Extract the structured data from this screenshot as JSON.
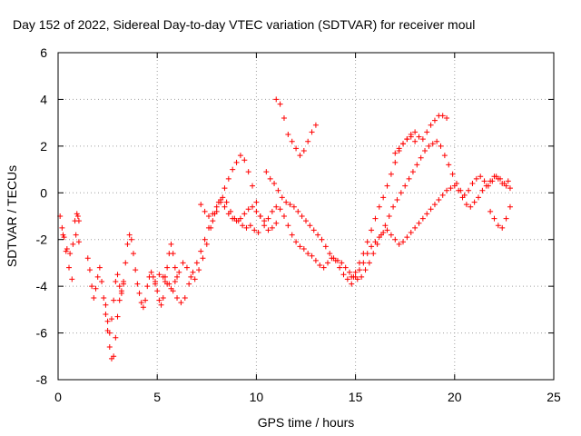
{
  "chart_data": {
    "type": "scatter",
    "title": "Day 152 of 2022, Sidereal Day-to-day VTEC variation (SDTVAR) for receiver moul",
    "xlabel": "GPS time / hours",
    "ylabel": "SDTVAR / TECUs",
    "xlim": [
      0,
      25
    ],
    "ylim": [
      -8,
      6
    ],
    "x_ticks": [
      0,
      5,
      10,
      15,
      20,
      25
    ],
    "y_ticks": [
      -8,
      -6,
      -4,
      -2,
      0,
      2,
      4,
      6
    ],
    "grid": true,
    "marker": "+",
    "series": [
      {
        "name": "SDTVAR",
        "color": "#ff0000",
        "x": [
          0.1,
          0.25,
          0.4,
          0.55,
          0.7,
          0.85,
          0.95,
          1.0,
          1.05,
          0.2,
          0.3,
          0.45,
          0.6,
          0.75,
          0.9,
          1.05,
          1.5,
          1.6,
          1.7,
          1.8,
          1.9,
          2.0,
          2.1,
          2.2,
          2.3,
          2.4,
          2.5,
          2.6,
          2.7,
          2.8,
          2.9,
          3.0,
          3.1,
          3.2,
          3.3,
          2.4,
          2.5,
          2.6,
          2.7,
          2.8,
          2.9,
          3.0,
          3.1,
          3.2,
          3.3,
          3.4,
          3.5,
          3.6,
          3.7,
          3.8,
          3.9,
          4.0,
          4.1,
          4.2,
          4.3,
          4.4,
          4.5,
          4.6,
          4.7,
          4.8,
          4.9,
          5.0,
          5.1,
          5.2,
          5.3,
          5.4,
          5.5,
          5.6,
          5.7,
          5.8,
          5.9,
          6.0,
          4.9,
          5.1,
          5.3,
          5.5,
          5.7,
          5.9,
          6.1,
          6.3,
          6.5,
          6.7,
          6.9,
          7.1,
          7.3,
          7.5,
          7.7,
          7.9,
          8.1,
          8.3,
          8.5,
          8.7,
          8.9,
          9.1,
          9.3,
          9.5,
          9.7,
          9.9,
          10.1,
          5.4,
          5.6,
          5.8,
          6.0,
          6.2,
          6.4,
          6.6,
          6.8,
          7.0,
          7.2,
          7.4,
          7.6,
          7.8,
          8.0,
          8.2,
          8.4,
          8.6,
          8.8,
          9.0,
          9.2,
          9.4,
          9.6,
          9.8,
          10.0,
          10.2,
          10.4,
          10.6,
          10.8,
          11.0,
          7.2,
          7.4,
          7.6,
          7.8,
          8.0,
          8.2,
          8.4,
          8.6,
          8.8,
          9.0,
          9.2,
          9.4,
          9.6,
          9.8,
          10.0,
          10.2,
          10.4,
          10.6,
          10.8,
          11.0,
          11.2,
          11.4,
          11.6,
          11.8,
          12.0,
          12.2,
          12.4,
          12.6,
          12.8,
          13.0,
          13.2,
          13.4,
          13.6,
          13.8,
          14.0,
          14.2,
          14.4,
          14.6,
          14.8,
          15.0,
          15.2,
          15.4,
          15.6,
          15.8,
          16.0,
          16.2,
          16.4,
          16.6,
          16.8,
          17.0,
          17.2,
          17.4,
          17.6,
          17.8,
          18.0,
          10.5,
          10.7,
          10.9,
          11.1,
          11.3,
          11.5,
          11.7,
          11.9,
          12.1,
          12.3,
          12.5,
          12.7,
          12.9,
          13.1,
          13.3,
          13.5,
          13.7,
          13.9,
          14.1,
          14.3,
          14.5,
          14.7,
          14.9,
          15.1,
          15.3,
          15.5,
          15.7,
          15.9,
          16.1,
          16.3,
          16.5,
          16.7,
          16.9,
          17.1,
          17.3,
          17.5,
          17.7,
          17.9,
          18.1,
          18.3,
          18.5,
          18.7,
          18.9,
          19.1,
          19.3,
          19.5,
          19.7,
          19.9,
          20.1,
          20.3,
          20.5,
          20.7,
          20.9,
          21.1,
          21.3,
          21.5,
          21.7,
          21.9,
          22.1,
          22.3,
          22.5,
          22.7,
          11.0,
          11.2,
          11.4,
          11.6,
          11.8,
          12.0,
          12.2,
          12.4,
          12.6,
          12.8,
          13.0,
          14.8,
          15.0,
          15.2,
          15.4,
          15.6,
          15.8,
          16.0,
          16.2,
          16.4,
          16.6,
          16.8,
          17.0,
          17.2,
          17.4,
          17.6,
          17.8,
          18.0,
          18.2,
          18.4,
          18.6,
          18.8,
          19.0,
          19.2,
          19.4,
          19.6,
          19.8,
          20.0,
          20.2,
          20.4,
          20.6,
          20.8,
          21.0,
          21.2,
          21.4,
          21.6,
          21.8,
          22.0,
          22.2,
          22.4,
          22.6,
          22.8,
          17.0,
          17.2,
          17.4,
          17.6,
          17.8,
          18.0,
          18.2,
          18.4,
          18.6,
          18.8,
          19.0,
          19.2,
          19.4,
          19.6,
          21.8,
          22.0,
          22.2,
          22.4,
          22.6,
          22.8
        ],
        "y": [
          -1.0,
          -1.8,
          -2.5,
          -3.2,
          -3.7,
          -1.2,
          -0.9,
          -1.0,
          -1.2,
          -1.5,
          -1.9,
          -2.4,
          -2.6,
          -2.2,
          -1.8,
          -2.1,
          -2.8,
          -3.3,
          -4.0,
          -4.5,
          -4.1,
          -3.6,
          -3.2,
          -3.8,
          -4.5,
          -5.2,
          -5.9,
          -6.6,
          -7.1,
          -7.0,
          -6.2,
          -5.3,
          -4.6,
          -4.2,
          -3.9,
          -4.8,
          -5.5,
          -6.0,
          -5.4,
          -4.6,
          -3.8,
          -3.5,
          -4.0,
          -4.3,
          -3.8,
          -3.0,
          -2.2,
          -1.8,
          -2.0,
          -2.6,
          -3.3,
          -3.9,
          -4.3,
          -4.7,
          -4.9,
          -4.6,
          -4.0,
          -3.6,
          -3.4,
          -3.6,
          -3.9,
          -4.2,
          -4.6,
          -4.8,
          -4.5,
          -3.8,
          -3.2,
          -2.6,
          -2.2,
          -2.6,
          -3.2,
          -3.6,
          -3.8,
          -3.5,
          -3.6,
          -3.9,
          -4.1,
          -3.8,
          -3.4,
          -3.0,
          -3.2,
          -3.6,
          -3.7,
          -3.3,
          -2.8,
          -2.2,
          -1.5,
          -0.9,
          -0.4,
          -0.2,
          -0.4,
          -0.8,
          -1.1,
          -1.2,
          -1.4,
          -1.5,
          -1.4,
          -1.6,
          -1.7,
          -3.6,
          -3.9,
          -4.2,
          -4.5,
          -4.7,
          -4.5,
          -3.9,
          -3.4,
          -3.0,
          -2.5,
          -2.0,
          -1.5,
          -1.2,
          -0.8,
          -0.3,
          0.2,
          0.6,
          1.0,
          1.3,
          1.6,
          1.4,
          0.9,
          0.3,
          -0.4,
          -1.0,
          -1.4,
          -1.6,
          -1.5,
          -1.3,
          -0.5,
          -0.8,
          -1.0,
          -0.9,
          -0.6,
          -0.4,
          -0.6,
          -0.9,
          -1.1,
          -1.2,
          -1.1,
          -0.9,
          -0.7,
          -0.6,
          -0.8,
          -1.0,
          -1.2,
          -1.1,
          -0.8,
          -0.6,
          -0.7,
          -1.0,
          -1.4,
          -1.8,
          -2.1,
          -2.3,
          -2.4,
          -2.6,
          -2.7,
          -2.9,
          -3.1,
          -3.2,
          -3.0,
          -2.8,
          -2.9,
          -3.2,
          -3.5,
          -3.7,
          -3.6,
          -3.4,
          -3.0,
          -2.6,
          -2.1,
          -1.6,
          -1.1,
          -0.6,
          -0.2,
          0.3,
          0.8,
          1.3,
          1.8,
          2.1,
          2.3,
          2.4,
          2.2,
          0.9,
          0.6,
          0.4,
          0.1,
          -0.2,
          -0.4,
          -0.5,
          -0.6,
          -0.8,
          -1.0,
          -1.2,
          -1.4,
          -1.6,
          -1.8,
          -2.0,
          -2.3,
          -2.6,
          -2.8,
          -2.9,
          -3.0,
          -3.2,
          -3.4,
          -3.6,
          -3.7,
          -3.6,
          -3.3,
          -3.0,
          -2.6,
          -2.2,
          -1.8,
          -1.4,
          -1.0,
          -0.6,
          -0.3,
          0.0,
          0.3,
          0.6,
          0.9,
          1.2,
          1.5,
          1.8,
          2.0,
          2.1,
          2.2,
          2.0,
          1.6,
          1.2,
          0.8,
          0.4,
          0.1,
          -0.1,
          0.1,
          0.4,
          0.6,
          0.7,
          0.5,
          0.3,
          0.5,
          0.7,
          0.6,
          0.4,
          0.5,
          4.0,
          3.8,
          3.2,
          2.5,
          2.2,
          1.9,
          1.6,
          1.8,
          2.2,
          2.6,
          2.9,
          -3.9,
          -3.6,
          -3.3,
          -3.0,
          -2.6,
          -2.3,
          -2.1,
          -1.9,
          -1.7,
          -1.6,
          -1.8,
          -2.0,
          -2.2,
          -2.1,
          -1.9,
          -1.7,
          -1.5,
          -1.3,
          -1.1,
          -0.9,
          -0.7,
          -0.5,
          -0.3,
          -0.1,
          0.1,
          0.2,
          0.3,
          0.1,
          -0.2,
          -0.5,
          -0.6,
          -0.4,
          -0.2,
          0.1,
          0.3,
          0.5,
          0.7,
          0.6,
          0.4,
          0.3,
          0.2,
          1.7,
          1.9,
          2.1,
          2.3,
          2.5,
          2.6,
          2.4,
          2.3,
          2.6,
          2.9,
          3.1,
          3.3,
          3.3,
          3.2,
          -0.8,
          -1.1,
          -1.4,
          -1.5,
          -1.1,
          -0.6
        ]
      }
    ]
  }
}
